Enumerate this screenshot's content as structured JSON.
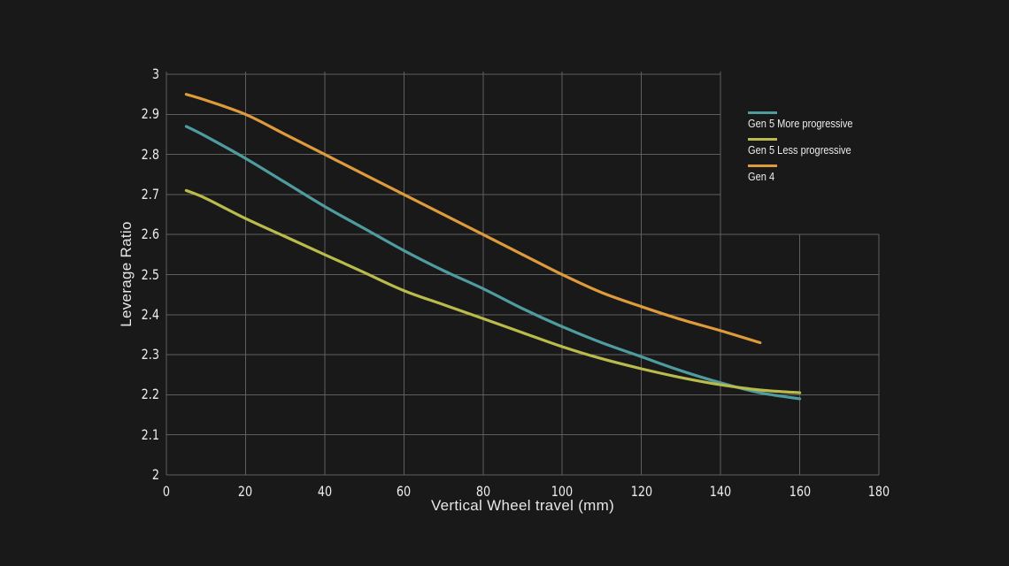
{
  "colors": {
    "background": "#191919",
    "grid": "#5f5f5f",
    "text": "#ececec"
  },
  "chart_data": {
    "type": "line",
    "title": "",
    "xlabel": "Vertical Wheel travel (mm)",
    "ylabel": "Leverage Ratio",
    "xlim": [
      0,
      180
    ],
    "ylim": [
      2,
      3
    ],
    "xticks": [
      0,
      20,
      40,
      60,
      80,
      100,
      120,
      140,
      160,
      180
    ],
    "yticks": [
      2,
      2.1,
      2.2,
      2.3,
      2.4,
      2.5,
      2.6,
      2.7,
      2.8,
      2.9,
      3
    ],
    "grid": true,
    "legend_position": "top-right",
    "series": [
      {
        "name": "Gen 5 More progressive",
        "color": "#4E9CA0",
        "x": [
          5,
          10,
          20,
          30,
          40,
          50,
          60,
          70,
          80,
          90,
          100,
          110,
          120,
          130,
          140,
          150,
          160
        ],
        "y": [
          2.87,
          2.845,
          2.79,
          2.73,
          2.67,
          2.615,
          2.56,
          2.51,
          2.465,
          2.415,
          2.37,
          2.33,
          2.295,
          2.26,
          2.23,
          2.205,
          2.19
        ]
      },
      {
        "name": "Gen 5 Less progressive",
        "color": "#B9BB4B",
        "x": [
          5,
          10,
          20,
          30,
          40,
          50,
          60,
          70,
          80,
          90,
          100,
          110,
          120,
          130,
          140,
          150,
          160
        ],
        "y": [
          2.71,
          2.69,
          2.64,
          2.595,
          2.55,
          2.505,
          2.46,
          2.425,
          2.39,
          2.355,
          2.32,
          2.29,
          2.265,
          2.243,
          2.225,
          2.212,
          2.205
        ]
      },
      {
        "name": "Gen 4",
        "color": "#DE9B3B",
        "x": [
          5,
          10,
          20,
          30,
          40,
          50,
          60,
          70,
          80,
          90,
          100,
          110,
          120,
          130,
          140,
          150
        ],
        "y": [
          2.95,
          2.935,
          2.9,
          2.85,
          2.8,
          2.75,
          2.7,
          2.65,
          2.6,
          2.55,
          2.5,
          2.455,
          2.42,
          2.388,
          2.36,
          2.33
        ]
      }
    ]
  }
}
